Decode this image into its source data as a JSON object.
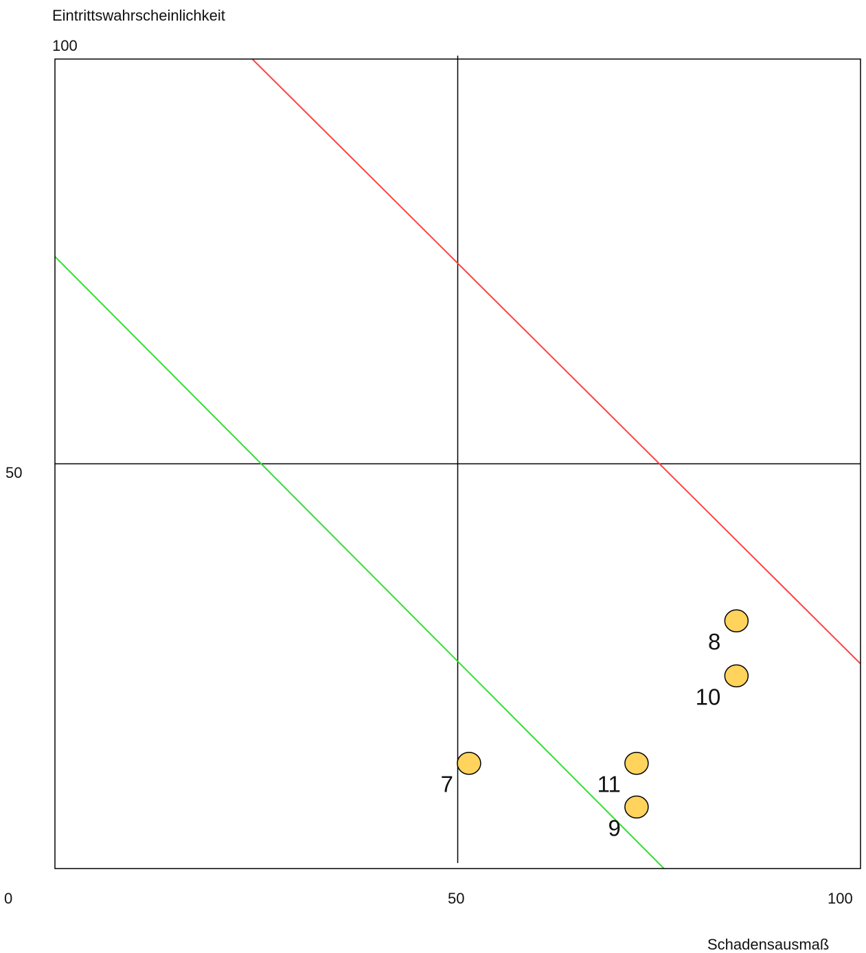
{
  "chart_data": {
    "type": "scatter",
    "ylabel": "Eintrittswahrscheinlichkeit",
    "xlabel": "Schadensausmaß",
    "xlim": [
      0,
      100
    ],
    "ylim": [
      0,
      100
    ],
    "x_ticks": [
      "0",
      "50",
      "100"
    ],
    "y_ticks": [
      "50",
      "100"
    ],
    "grid": "center lines at x=50 and y=50",
    "reference_lines": [
      {
        "color": "#ff4040",
        "points": [
          [
            24.5,
            100
          ],
          [
            100,
            25.3
          ]
        ]
      },
      {
        "color": "#33dd33",
        "points": [
          [
            0,
            75.6
          ],
          [
            75.6,
            0
          ]
        ]
      }
    ],
    "point_color": "#ffd35c",
    "points": [
      {
        "label": "7",
        "x": 51.4,
        "y": 13.0
      },
      {
        "label": "8",
        "x": 84.6,
        "y": 30.6
      },
      {
        "label": "9",
        "x": 72.2,
        "y": 7.6
      },
      {
        "label": "10",
        "x": 84.6,
        "y": 23.8
      },
      {
        "label": "11",
        "x": 72.2,
        "y": 13.0
      }
    ]
  }
}
